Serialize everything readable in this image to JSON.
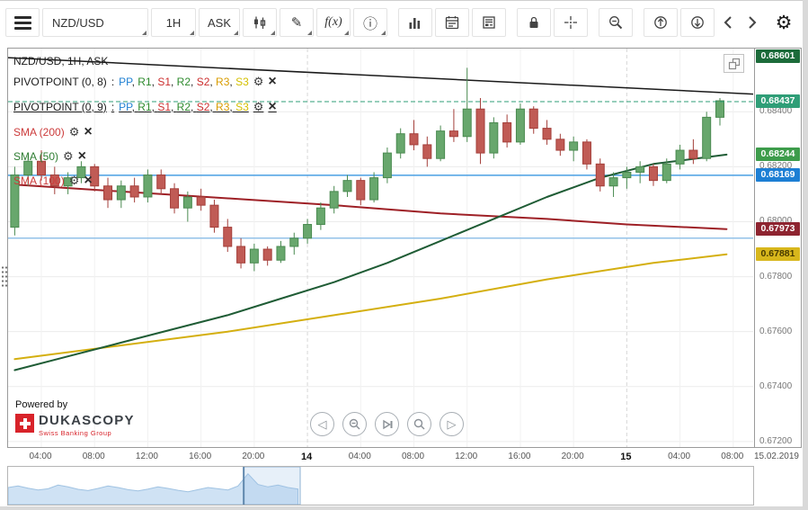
{
  "toolbar": {
    "symbol": "NZD/USD",
    "timeframe": "1H",
    "price_side": "ASK",
    "fx_label": "f(x)"
  },
  "icons": {
    "gear": "⚙",
    "pencil": "✎",
    "info": "ⓘ",
    "close": "×",
    "triangle_left": "◁",
    "triangle_right": "▷"
  },
  "chart": {
    "title": "NZD/USD, 1H, ASK",
    "legend_separator": " : ",
    "indicators": [
      {
        "name": "PIVOTPOINT (0, 8)",
        "color": "#1c1c1c",
        "series": [
          {
            "label": "PP",
            "color": "#1e7fd2"
          },
          {
            "label": "R1",
            "color": "#2e8b2e"
          },
          {
            "label": "S1",
            "color": "#cc2f2f"
          },
          {
            "label": "R2",
            "color": "#2e8b2e"
          },
          {
            "label": "S2",
            "color": "#cc2f2f"
          },
          {
            "label": "R3",
            "color": "#d89c00"
          },
          {
            "label": "S3",
            "color": "#d4c000"
          }
        ]
      },
      {
        "name": "PIVOTPOINT (0, 9)",
        "color": "#1c1c1c",
        "series": [
          {
            "label": "PP",
            "color": "#1e7fd2"
          },
          {
            "label": "R1",
            "color": "#2e8b2e"
          },
          {
            "label": "S1",
            "color": "#cc2f2f"
          },
          {
            "label": "R2",
            "color": "#2e8b2e"
          },
          {
            "label": "S2",
            "color": "#cc2f2f"
          },
          {
            "label": "R3",
            "color": "#d89c00"
          },
          {
            "label": "S3",
            "color": "#d4c000"
          }
        ]
      },
      {
        "name": "SMA (200)",
        "color": "#cc3b3b"
      },
      {
        "name": "SMA (50)",
        "color": "#2e7d32"
      },
      {
        "name": "SMA (100)",
        "color": "#cc3b3b"
      }
    ],
    "price_axis_ticks": [
      "0.68400",
      "0.68200",
      "0.68000",
      "0.67800",
      "0.67600",
      "0.67400",
      "0.67200"
    ],
    "price_badges": [
      {
        "value": "0.68601",
        "bg": "#1c6b3a",
        "fg": "#ffffff"
      },
      {
        "value": "0.68437",
        "bg": "#2f9e77",
        "fg": "#ffffff"
      },
      {
        "value": "0.68244",
        "bg": "#3d9c4b",
        "fg": "#ffffff"
      },
      {
        "value": "0.68169",
        "bg": "#1d7fd4",
        "fg": "#ffffff"
      },
      {
        "value": "0.67973",
        "bg": "#8e2430",
        "fg": "#ffffff"
      },
      {
        "value": "0.67881",
        "bg": "#d8b71c",
        "fg": "#473a00"
      }
    ],
    "date_label": "15.02.2019",
    "powered_by": "Powered by",
    "brand": {
      "name": "DUKASCOPY",
      "subtitle": "Swiss Banking Group",
      "logo_color": "#d8232a"
    }
  },
  "chart_data": {
    "type": "candlestick",
    "symbol": "NZD/USD",
    "interval": "1H",
    "price_type": "ASK",
    "y_range": [
      0.6718,
      0.6863
    ],
    "x_slots": 56,
    "grid_prices": [
      0.684,
      0.682,
      0.68,
      0.678,
      0.676,
      0.674,
      0.672
    ],
    "time_ticks": [
      {
        "i": 2,
        "label": "04:00"
      },
      {
        "i": 6,
        "label": "08:00"
      },
      {
        "i": 10,
        "label": "12:00"
      },
      {
        "i": 14,
        "label": "16:00"
      },
      {
        "i": 18,
        "label": "20:00"
      },
      {
        "i": 22,
        "label": "14",
        "day": true
      },
      {
        "i": 26,
        "label": "04:00"
      },
      {
        "i": 30,
        "label": "08:00"
      },
      {
        "i": 34,
        "label": "12:00"
      },
      {
        "i": 38,
        "label": "16:00"
      },
      {
        "i": 42,
        "label": "20:00"
      },
      {
        "i": 46,
        "label": "15",
        "day": true
      },
      {
        "i": 50,
        "label": "04:00"
      },
      {
        "i": 54,
        "label": "08:00"
      }
    ],
    "candle_colors": {
      "up_fill": "#68a76d",
      "up_stroke": "#4a8a50",
      "down_fill": "#c05b55",
      "down_stroke": "#a43f3a"
    },
    "candles": [
      [
        0.6798,
        0.682,
        0.6795,
        0.6817
      ],
      [
        0.6817,
        0.6824,
        0.6813,
        0.6822
      ],
      [
        0.6822,
        0.6826,
        0.6815,
        0.6817
      ],
      [
        0.6817,
        0.682,
        0.681,
        0.6813
      ],
      [
        0.6813,
        0.6818,
        0.681,
        0.6816
      ],
      [
        0.6816,
        0.6822,
        0.6814,
        0.682
      ],
      [
        0.682,
        0.6821,
        0.6811,
        0.6813
      ],
      [
        0.6813,
        0.6816,
        0.6805,
        0.6808
      ],
      [
        0.6808,
        0.6815,
        0.6805,
        0.6813
      ],
      [
        0.6813,
        0.6816,
        0.6807,
        0.6809
      ],
      [
        0.6809,
        0.6819,
        0.6807,
        0.6817
      ],
      [
        0.6817,
        0.6819,
        0.681,
        0.6812
      ],
      [
        0.6812,
        0.6814,
        0.6803,
        0.6805
      ],
      [
        0.6805,
        0.6811,
        0.68,
        0.6809
      ],
      [
        0.6809,
        0.6812,
        0.6804,
        0.6806
      ],
      [
        0.6806,
        0.6808,
        0.6796,
        0.6798
      ],
      [
        0.6798,
        0.6801,
        0.6789,
        0.6791
      ],
      [
        0.6791,
        0.6794,
        0.6783,
        0.6785
      ],
      [
        0.6785,
        0.6792,
        0.6782,
        0.679
      ],
      [
        0.679,
        0.6791,
        0.6784,
        0.6786
      ],
      [
        0.6786,
        0.6793,
        0.6785,
        0.6791
      ],
      [
        0.6791,
        0.6796,
        0.6788,
        0.6794
      ],
      [
        0.6794,
        0.6801,
        0.6792,
        0.6799
      ],
      [
        0.6799,
        0.6807,
        0.6797,
        0.6805
      ],
      [
        0.6805,
        0.6813,
        0.6803,
        0.6811
      ],
      [
        0.6811,
        0.6817,
        0.6809,
        0.6815
      ],
      [
        0.6815,
        0.6816,
        0.6806,
        0.6808
      ],
      [
        0.6808,
        0.6818,
        0.6807,
        0.6816
      ],
      [
        0.6816,
        0.6827,
        0.6814,
        0.6825
      ],
      [
        0.6825,
        0.6834,
        0.6823,
        0.6832
      ],
      [
        0.6832,
        0.6837,
        0.6826,
        0.6828
      ],
      [
        0.6828,
        0.6831,
        0.682,
        0.6823
      ],
      [
        0.6823,
        0.6835,
        0.6822,
        0.6833
      ],
      [
        0.6833,
        0.6841,
        0.6829,
        0.6831
      ],
      [
        0.6831,
        0.6856,
        0.6829,
        0.6841
      ],
      [
        0.6841,
        0.6845,
        0.6821,
        0.6825
      ],
      [
        0.6825,
        0.6838,
        0.6823,
        0.6836
      ],
      [
        0.6836,
        0.6839,
        0.6827,
        0.6829
      ],
      [
        0.6829,
        0.6843,
        0.6828,
        0.6841
      ],
      [
        0.6841,
        0.6842,
        0.6832,
        0.6834
      ],
      [
        0.6834,
        0.6837,
        0.6828,
        0.683
      ],
      [
        0.683,
        0.6832,
        0.6824,
        0.6826
      ],
      [
        0.6826,
        0.6831,
        0.6822,
        0.6829
      ],
      [
        0.6829,
        0.683,
        0.6819,
        0.6821
      ],
      [
        0.6821,
        0.6823,
        0.6811,
        0.6813
      ],
      [
        0.6813,
        0.6818,
        0.6809,
        0.6816
      ],
      [
        0.6816,
        0.682,
        0.6812,
        0.6818
      ],
      [
        0.6818,
        0.6822,
        0.6814,
        0.682
      ],
      [
        0.682,
        0.6821,
        0.6813,
        0.6815
      ],
      [
        0.6815,
        0.6823,
        0.6814,
        0.6821
      ],
      [
        0.6821,
        0.6828,
        0.6819,
        0.6826
      ],
      [
        0.6826,
        0.683,
        0.6821,
        0.6823
      ],
      [
        0.6823,
        0.684,
        0.6822,
        0.6838
      ],
      [
        0.6838,
        0.6845,
        0.6835,
        0.6844
      ]
    ],
    "overlays": [
      {
        "name": "SMA (100)",
        "color": "#d4af10",
        "width": 2,
        "points": [
          [
            0,
            0.675
          ],
          [
            8,
            0.6755
          ],
          [
            16,
            0.676
          ],
          [
            24,
            0.6766
          ],
          [
            32,
            0.6772
          ],
          [
            40,
            0.6779
          ],
          [
            48,
            0.6785
          ],
          [
            53.5,
            0.67881
          ]
        ]
      },
      {
        "name": "SMA (200)",
        "color": "#9e2026",
        "width": 2,
        "points": [
          [
            0,
            0.68135
          ],
          [
            8,
            0.6811
          ],
          [
            16,
            0.68085
          ],
          [
            24,
            0.6806
          ],
          [
            32,
            0.6803
          ],
          [
            40,
            0.6801
          ],
          [
            46,
            0.6799
          ],
          [
            53.5,
            0.67973
          ]
        ]
      },
      {
        "name": "SMA (50)",
        "color": "#1f5c35",
        "width": 2,
        "points": [
          [
            0,
            0.6746
          ],
          [
            4,
            0.6751
          ],
          [
            8,
            0.6756
          ],
          [
            12,
            0.6761
          ],
          [
            16,
            0.6766
          ],
          [
            20,
            0.6772
          ],
          [
            24,
            0.6778
          ],
          [
            28,
            0.6785
          ],
          [
            32,
            0.6793
          ],
          [
            36,
            0.6801
          ],
          [
            40,
            0.6809
          ],
          [
            44,
            0.6816
          ],
          [
            48,
            0.6821
          ],
          [
            53.5,
            0.68244
          ]
        ]
      },
      {
        "name": "trendline",
        "color": "#1a1a1a",
        "width": 1.5,
        "points": [
          [
            -0.5,
            0.68597
          ],
          [
            56.5,
            0.68462
          ]
        ]
      }
    ],
    "h_lines": [
      {
        "value": 0.68169,
        "color": "#4a9fe3",
        "width": 1.5
      },
      {
        "value": 0.6794,
        "color": "#93c2e8",
        "width": 1.5
      }
    ],
    "price_line": {
      "value": 0.68437,
      "color": "#2f9e77"
    }
  },
  "navigator": {
    "values": [
      0.5,
      0.55,
      0.48,
      0.42,
      0.46,
      0.58,
      0.52,
      0.44,
      0.4,
      0.47,
      0.55,
      0.5,
      0.43,
      0.39,
      0.45,
      0.52,
      0.47,
      0.41,
      0.36,
      0.43,
      0.5,
      0.46,
      0.42,
      0.55,
      0.95,
      0.6,
      0.52,
      0.58,
      0.5,
      0.45
    ],
    "extent": 0.39,
    "window": [
      0.317,
      0.393
    ]
  }
}
